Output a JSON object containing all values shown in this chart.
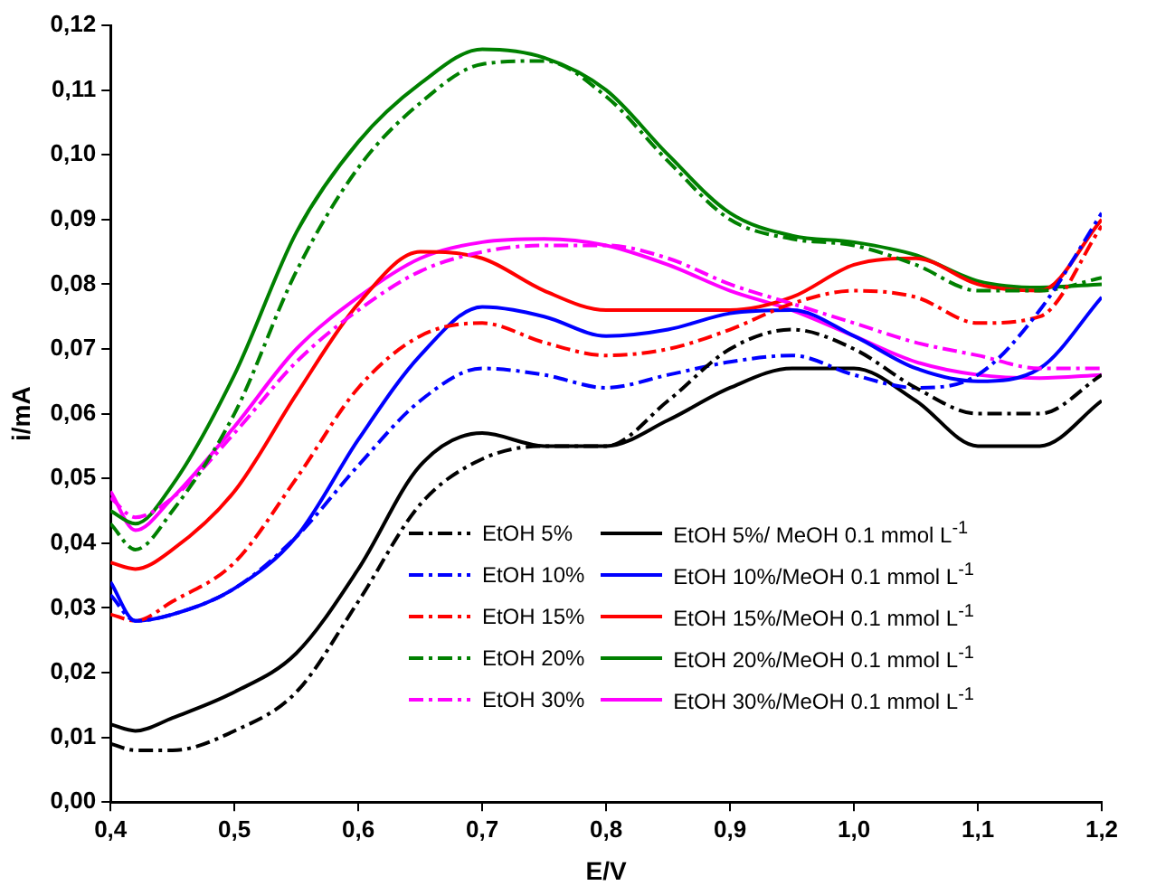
{
  "chart_data": {
    "type": "line",
    "xlabel": "E/V",
    "ylabel": "i/mA",
    "x": [
      0.4,
      0.42,
      0.45,
      0.5,
      0.55,
      0.6,
      0.65,
      0.7,
      0.75,
      0.8,
      0.85,
      0.9,
      0.95,
      1.0,
      1.05,
      1.1,
      1.15,
      1.2
    ],
    "xlim": [
      0.4,
      1.2
    ],
    "xticks": [
      {
        "value": 0.4,
        "label": "0,4"
      },
      {
        "value": 0.5,
        "label": "0,5"
      },
      {
        "value": 0.6,
        "label": "0,6"
      },
      {
        "value": 0.7,
        "label": "0,7"
      },
      {
        "value": 0.8,
        "label": "0,8"
      },
      {
        "value": 0.9,
        "label": "0,9"
      },
      {
        "value": 1.0,
        "label": "1,0"
      },
      {
        "value": 1.1,
        "label": "1,1"
      },
      {
        "value": 1.2,
        "label": "1,2"
      }
    ],
    "ylim": [
      0,
      0.12
    ],
    "yticks": [
      {
        "value": 0,
        "label": "0,00"
      },
      {
        "value": 0.01,
        "label": "0,01"
      },
      {
        "value": 0.02,
        "label": "0,02"
      },
      {
        "value": 0.03,
        "label": "0,03"
      },
      {
        "value": 0.04,
        "label": "0,04"
      },
      {
        "value": 0.05,
        "label": "0,05"
      },
      {
        "value": 0.06,
        "label": "0,06"
      },
      {
        "value": 0.07,
        "label": "0,07"
      },
      {
        "value": 0.08,
        "label": "0,08"
      },
      {
        "value": 0.09,
        "label": "0,09"
      },
      {
        "value": 0.1,
        "label": "0,10"
      },
      {
        "value": 0.11,
        "label": "0,11"
      },
      {
        "value": 0.12,
        "label": "0,12"
      }
    ],
    "grid": false,
    "legend": "bottom right",
    "marker": "none",
    "series": [
      {
        "name": "EtOH 5%",
        "color": "#000000",
        "line_style": "dashed",
        "values": [
          0.009,
          0.008,
          0.008,
          0.011,
          0.017,
          0.031,
          0.046,
          0.053,
          0.055,
          0.055,
          0.062,
          0.07,
          0.073,
          0.07,
          0.064,
          0.06,
          0.06,
          0.066
        ]
      },
      {
        "name": "EtOH 10%",
        "color": "#0000ff",
        "line_style": "dashed",
        "values": [
          0.032,
          0.028,
          0.029,
          0.033,
          0.041,
          0.052,
          0.062,
          0.067,
          0.066,
          0.064,
          0.066,
          0.068,
          0.069,
          0.066,
          0.064,
          0.066,
          0.076,
          0.091
        ]
      },
      {
        "name": "EtOH 15%",
        "color": "#ff0000",
        "line_style": "dashed",
        "values": [
          0.029,
          0.028,
          0.031,
          0.037,
          0.05,
          0.064,
          0.072,
          0.074,
          0.071,
          0.069,
          0.07,
          0.073,
          0.077,
          0.079,
          0.078,
          0.074,
          0.075,
          0.089
        ]
      },
      {
        "name": "EtOH 20%",
        "color": "#008000",
        "line_style": "dashed",
        "values": [
          0.043,
          0.039,
          0.045,
          0.06,
          0.082,
          0.098,
          0.108,
          0.114,
          0.1145,
          0.109,
          0.099,
          0.09,
          0.087,
          0.086,
          0.083,
          0.079,
          0.079,
          0.081
        ]
      },
      {
        "name": "EtOH 30%",
        "color": "#ff00ff",
        "line_style": "dashed",
        "values": [
          0.047,
          0.044,
          0.047,
          0.057,
          0.068,
          0.076,
          0.082,
          0.085,
          0.086,
          0.086,
          0.084,
          0.08,
          0.077,
          0.074,
          0.071,
          0.069,
          0.067,
          0.067
        ]
      },
      {
        "name": "EtOH 5%/ MeOH 0.1 mmol L$^{-1}$",
        "color": "#000000",
        "line_style": "solid",
        "values": [
          0.012,
          0.011,
          0.013,
          0.017,
          0.023,
          0.036,
          0.052,
          0.057,
          0.055,
          0.055,
          0.059,
          0.064,
          0.067,
          0.067,
          0.062,
          0.055,
          0.055,
          0.062
        ]
      },
      {
        "name": "EtOH 10%/MeOH 0.1 mmol L$^{-1}$",
        "color": "#0000ff",
        "line_style": "solid",
        "values": [
          0.034,
          0.028,
          0.029,
          0.033,
          0.041,
          0.056,
          0.069,
          0.0765,
          0.075,
          0.072,
          0.073,
          0.0755,
          0.076,
          0.072,
          0.067,
          0.065,
          0.067,
          0.078
        ]
      },
      {
        "name": "EtOH 15%/MeOH 0.1 mmol L$^{-1}$",
        "color": "#ff0000",
        "line_style": "solid",
        "values": [
          0.037,
          0.036,
          0.039,
          0.048,
          0.063,
          0.077,
          0.085,
          0.084,
          0.079,
          0.076,
          0.076,
          0.076,
          0.078,
          0.083,
          0.084,
          0.08,
          0.079,
          0.09
        ]
      },
      {
        "name": "EtOH 20%/MeOH 0.1 mmol L$^{-1}$",
        "color": "#008000",
        "line_style": "solid",
        "values": [
          0.045,
          0.043,
          0.049,
          0.066,
          0.088,
          0.102,
          0.111,
          0.1163,
          0.115,
          0.11,
          0.1,
          0.091,
          0.0875,
          0.0865,
          0.0845,
          0.0805,
          0.0795,
          0.08
        ]
      },
      {
        "name": "EtOH 30%/MeOH 0.1 mmol L$^{-1}$",
        "color": "#ff00ff",
        "line_style": "solid",
        "values": [
          0.048,
          0.042,
          0.047,
          0.058,
          0.07,
          0.078,
          0.084,
          0.0865,
          0.087,
          0.086,
          0.083,
          0.079,
          0.076,
          0.072,
          0.068,
          0.066,
          0.0655,
          0.066
        ]
      }
    ]
  }
}
